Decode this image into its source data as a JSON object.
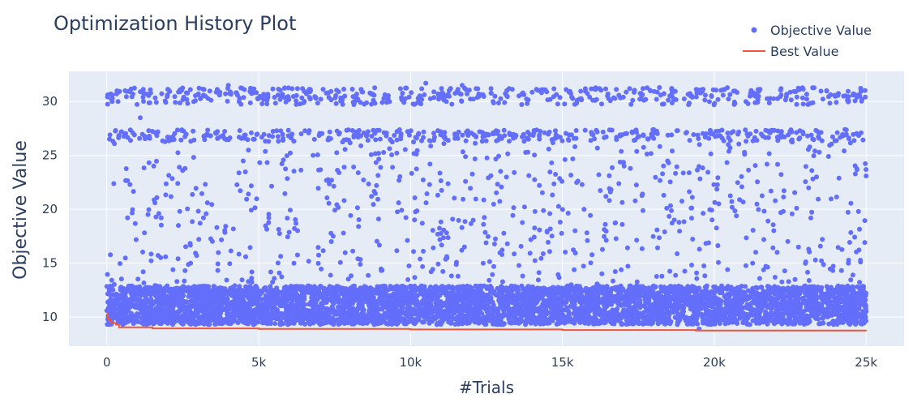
{
  "chart_data": {
    "type": "scatter",
    "title": "Optimization History Plot",
    "xlabel": "#Trials",
    "ylabel": "Objective Value",
    "xlim": [
      -1250,
      26250
    ],
    "ylim": [
      7.3,
      32.8
    ],
    "x_ticks": [
      {
        "value": 0,
        "label": "0"
      },
      {
        "value": 5000,
        "label": "5k"
      },
      {
        "value": 10000,
        "label": "10k"
      },
      {
        "value": 15000,
        "label": "15k"
      },
      {
        "value": 20000,
        "label": "20k"
      },
      {
        "value": 25000,
        "label": "25k"
      }
    ],
    "y_ticks": [
      {
        "value": 10,
        "label": "10"
      },
      {
        "value": 15,
        "label": "15"
      },
      {
        "value": 20,
        "label": "20"
      },
      {
        "value": 25,
        "label": "25"
      },
      {
        "value": 30,
        "label": "30"
      }
    ],
    "grid": true,
    "legend_position": "top-right",
    "series": [
      {
        "name": "Objective Value",
        "mode": "markers",
        "color": "#636efa",
        "x_range": [
          0,
          25000
        ],
        "points_sample": [
          [
            0,
            10.6
          ],
          [
            100,
            26.9
          ],
          [
            150,
            30.2
          ],
          [
            320,
            30.7
          ],
          [
            600,
            31.0
          ],
          [
            850,
            27.1
          ],
          [
            1100,
            28.5
          ],
          [
            1300,
            30.7
          ],
          [
            2000,
            26.7
          ],
          [
            2400,
            19.8
          ],
          [
            3200,
            26.8
          ],
          [
            4000,
            31.5
          ],
          [
            4300,
            30.6
          ],
          [
            5300,
            30.4
          ],
          [
            6400,
            27.0
          ],
          [
            7400,
            22.7
          ],
          [
            8600,
            27.2
          ],
          [
            10200,
            26.6
          ],
          [
            10500,
            31.7
          ],
          [
            11700,
            31.5
          ],
          [
            12400,
            18.6
          ],
          [
            13700,
            30.8
          ],
          [
            15300,
            26.9
          ],
          [
            16500,
            30.7
          ],
          [
            17300,
            27.1
          ],
          [
            18600,
            31.1
          ],
          [
            19500,
            8.9
          ],
          [
            20100,
            26.8
          ],
          [
            21300,
            30.8
          ],
          [
            22200,
            27.1
          ],
          [
            23700,
            31.0
          ],
          [
            24300,
            27.4
          ],
          [
            24700,
            30.4
          ],
          [
            25000,
            23.1
          ]
        ]
      },
      {
        "name": "Best Value",
        "mode": "line",
        "color": "#ef553b",
        "x": [
          0,
          30,
          80,
          150,
          300,
          400,
          1500,
          5000,
          10000,
          15000,
          19400,
          25000
        ],
        "values": [
          10.4,
          9.9,
          9.7,
          9.45,
          9.3,
          9.05,
          8.95,
          8.9,
          8.85,
          8.8,
          8.75,
          8.72
        ]
      }
    ]
  }
}
